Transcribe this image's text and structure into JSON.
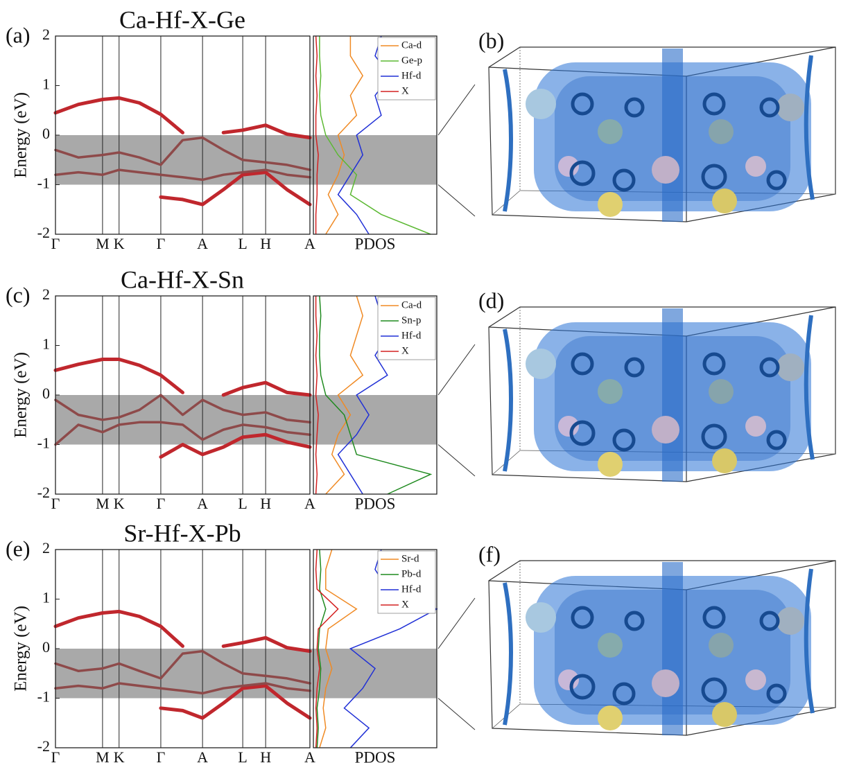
{
  "chart_data": [
    {
      "type": "line",
      "panel_label": "(a)",
      "title": "Ca-Hf-X-Ge",
      "ylabel": "Energy (eV)",
      "xlabel": "PDOS",
      "xlim": [
        0,
        1
      ],
      "xticks": [
        {
          "value": 0,
          "label": "Γ"
        },
        {
          "value": 0.185,
          "label": "M"
        },
        {
          "value": 0.25,
          "label": "K"
        },
        {
          "value": 0.414,
          "label": "Γ"
        },
        {
          "value": 0.578,
          "label": "A"
        },
        {
          "value": 0.736,
          "label": "L"
        },
        {
          "value": 0.826,
          "label": "H"
        },
        {
          "value": 1,
          "label": "A"
        }
      ],
      "ylim": [
        -2,
        2
      ],
      "yticks": [
        -2,
        -1,
        0,
        1,
        2
      ],
      "shade": [
        -1,
        0
      ],
      "x": [
        0,
        0.09,
        0.185,
        0.25,
        0.33,
        0.414,
        0.5,
        0.578,
        0.66,
        0.736,
        0.826,
        0.91,
        1
      ],
      "series": [
        {
          "color": "#c0272d",
          "values": [
            0.45,
            0.62,
            0.72,
            0.75,
            0.65,
            0.42,
            0.05,
            null,
            0.05,
            0.1,
            0.2,
            0.02,
            -0.05
          ]
        },
        {
          "color": "#c0272d",
          "values": [
            null,
            null,
            null,
            null,
            null,
            -1.25,
            -1.3,
            -1.4,
            -1.1,
            -0.8,
            -0.75,
            -1.1,
            -1.4
          ]
        },
        {
          "color": "#8e4a4a",
          "values": [
            -0.3,
            -0.45,
            -0.4,
            -0.35,
            -0.45,
            -0.6,
            -0.1,
            -0.05,
            -0.3,
            -0.5,
            -0.55,
            -0.6,
            -0.7
          ]
        },
        {
          "color": "#8e4a4a",
          "values": [
            -0.8,
            -0.75,
            -0.8,
            -0.7,
            -0.75,
            -0.8,
            -0.85,
            -0.9,
            -0.8,
            -0.75,
            -0.7,
            -0.8,
            -0.85
          ]
        }
      ],
      "pdos_xlim": [
        0,
        1
      ],
      "pdos": {
        "energy": [
          -2,
          -1.6,
          -1.2,
          -0.8,
          -0.4,
          0,
          0.4,
          0.8,
          1.2,
          1.6,
          2
        ],
        "series": [
          {
            "name": "Ca-d",
            "color": "#f08a24",
            "values": [
              0.1,
              0.2,
              0.12,
              0.2,
              0.25,
              0.2,
              0.35,
              0.3,
              0.4,
              0.3,
              0.3
            ]
          },
          {
            "name": "Ge-p",
            "color": "#5bb832",
            "values": [
              0.95,
              0.55,
              0.3,
              0.35,
              0.2,
              0.1,
              0.06,
              0.05,
              0.06,
              0.05,
              0.05
            ]
          },
          {
            "name": "Hf-d",
            "color": "#1f2fd6",
            "values": [
              0.45,
              0.35,
              0.2,
              0.3,
              0.4,
              0.35,
              0.55,
              0.5,
              0.62,
              0.5,
              0.55
            ]
          },
          {
            "name": "X",
            "color": "#d42020",
            "values": [
              0.02,
              0.02,
              0.03,
              0.03,
              0.04,
              0.02,
              0.02,
              0.03,
              0.02,
              0.03,
              0.02
            ]
          }
        ]
      }
    },
    {
      "type": "line",
      "panel_label": "(c)",
      "title": "Ca-Hf-X-Sn",
      "ylabel": "Energy (eV)",
      "xlabel": "PDOS",
      "xlim": [
        0,
        1
      ],
      "xticks": [
        {
          "value": 0,
          "label": "Γ"
        },
        {
          "value": 0.185,
          "label": "M"
        },
        {
          "value": 0.25,
          "label": "K"
        },
        {
          "value": 0.414,
          "label": "Γ"
        },
        {
          "value": 0.578,
          "label": "A"
        },
        {
          "value": 0.736,
          "label": "L"
        },
        {
          "value": 0.826,
          "label": "H"
        },
        {
          "value": 1,
          "label": "A"
        }
      ],
      "ylim": [
        -2,
        2
      ],
      "yticks": [
        -2,
        -1,
        0,
        1,
        2
      ],
      "shade": [
        -1,
        0
      ],
      "x": [
        0,
        0.09,
        0.185,
        0.25,
        0.33,
        0.414,
        0.5,
        0.578,
        0.66,
        0.736,
        0.826,
        0.91,
        1
      ],
      "series": [
        {
          "color": "#c0272d",
          "values": [
            0.5,
            0.62,
            0.72,
            0.72,
            0.6,
            0.4,
            0.05,
            null,
            0.0,
            0.15,
            0.25,
            0.05,
            0.0
          ]
        },
        {
          "color": "#c0272d",
          "values": [
            null,
            null,
            null,
            null,
            null,
            -1.25,
            -1.0,
            -1.2,
            -1.05,
            -0.85,
            -0.8,
            -0.95,
            -1.05
          ]
        },
        {
          "color": "#8e4a4a",
          "values": [
            -0.1,
            -0.4,
            -0.5,
            -0.45,
            -0.3,
            0.0,
            -0.4,
            -0.1,
            -0.3,
            -0.4,
            -0.35,
            -0.5,
            -0.55
          ]
        },
        {
          "color": "#8e4a4a",
          "values": [
            -1.0,
            -0.6,
            -0.75,
            -0.6,
            -0.55,
            -0.55,
            -0.6,
            -0.9,
            -0.7,
            -0.6,
            -0.65,
            -0.75,
            -0.8
          ]
        }
      ],
      "pdos_xlim": [
        0,
        1
      ],
      "pdos": {
        "energy": [
          -2,
          -1.6,
          -1.2,
          -0.8,
          -0.4,
          0,
          0.4,
          0.8,
          1.2,
          1.6,
          2
        ],
        "series": [
          {
            "name": "Ca-d",
            "color": "#f08a24",
            "values": [
              0.1,
              0.25,
              0.15,
              0.2,
              0.3,
              0.2,
              0.4,
              0.3,
              0.35,
              0.4,
              0.35
            ]
          },
          {
            "name": "Sn-p",
            "color": "#1f8a1f",
            "values": [
              0.6,
              0.95,
              0.35,
              0.3,
              0.25,
              0.1,
              0.06,
              0.05,
              0.05,
              0.06,
              0.05
            ]
          },
          {
            "name": "Hf-d",
            "color": "#1f2fd6",
            "values": [
              0.4,
              0.3,
              0.2,
              0.35,
              0.45,
              0.35,
              0.6,
              0.5,
              0.6,
              0.55,
              0.5
            ]
          },
          {
            "name": "X",
            "color": "#d42020",
            "values": [
              0.02,
              0.03,
              0.02,
              0.03,
              0.04,
              0.02,
              0.03,
              0.02,
              0.03,
              0.02,
              0.02
            ]
          }
        ]
      }
    },
    {
      "type": "line",
      "panel_label": "(e)",
      "title": "Sr-Hf-X-Pb",
      "ylabel": "Energy (eV)",
      "xlabel": "PDOS",
      "xlim": [
        0,
        1
      ],
      "xticks": [
        {
          "value": 0,
          "label": "Γ"
        },
        {
          "value": 0.185,
          "label": "M"
        },
        {
          "value": 0.25,
          "label": "K"
        },
        {
          "value": 0.414,
          "label": "Γ"
        },
        {
          "value": 0.578,
          "label": "A"
        },
        {
          "value": 0.736,
          "label": "L"
        },
        {
          "value": 0.826,
          "label": "H"
        },
        {
          "value": 1,
          "label": "A"
        }
      ],
      "ylim": [
        -2,
        2
      ],
      "yticks": [
        -2,
        -1,
        0,
        1,
        2
      ],
      "shade": [
        -1,
        0
      ],
      "x": [
        0,
        0.09,
        0.185,
        0.25,
        0.33,
        0.414,
        0.5,
        0.578,
        0.66,
        0.736,
        0.826,
        0.91,
        1
      ],
      "series": [
        {
          "color": "#c0272d",
          "values": [
            0.45,
            0.62,
            0.72,
            0.75,
            0.65,
            0.45,
            0.05,
            null,
            0.05,
            0.12,
            0.22,
            0.02,
            -0.05
          ]
        },
        {
          "color": "#c0272d",
          "values": [
            null,
            null,
            null,
            null,
            null,
            -1.2,
            -1.25,
            -1.4,
            -1.1,
            -0.8,
            -0.75,
            -1.1,
            -1.4
          ]
        },
        {
          "color": "#8e4a4a",
          "values": [
            -0.3,
            -0.45,
            -0.4,
            -0.3,
            -0.45,
            -0.6,
            -0.1,
            -0.05,
            -0.3,
            -0.5,
            -0.55,
            -0.6,
            -0.7
          ]
        },
        {
          "color": "#8e4a4a",
          "values": [
            -0.8,
            -0.75,
            -0.8,
            -0.7,
            -0.75,
            -0.8,
            -0.85,
            -0.9,
            -0.8,
            -0.75,
            -0.7,
            -0.8,
            -0.85
          ]
        }
      ],
      "pdos_xlim": [
        0,
        1
      ],
      "pdos": {
        "energy": [
          -2,
          -1.6,
          -1.2,
          -0.8,
          -0.4,
          0,
          0.4,
          0.8,
          1.2,
          1.6,
          2
        ],
        "series": [
          {
            "name": "Sr-d",
            "color": "#f08a24",
            "values": [
              0.05,
              0.1,
              0.08,
              0.1,
              0.15,
              0.1,
              0.12,
              0.35,
              0.1,
              0.1,
              0.15
            ]
          },
          {
            "name": "Pb-d",
            "color": "#1f8a1f",
            "values": [
              0.03,
              0.04,
              0.03,
              0.05,
              0.06,
              0.04,
              0.05,
              0.1,
              0.05,
              0.06,
              0.05
            ]
          },
          {
            "name": "Hf-d",
            "color": "#1f2fd6",
            "values": [
              0.3,
              0.45,
              0.25,
              0.4,
              0.5,
              0.3,
              0.7,
              1.0,
              0.6,
              0.5,
              0.55
            ]
          },
          {
            "name": "X",
            "color": "#d42020",
            "values": [
              0.02,
              0.03,
              0.02,
              0.03,
              0.05,
              0.03,
              0.04,
              0.2,
              0.03,
              0.02,
              0.03
            ]
          }
        ]
      }
    }
  ],
  "images": [
    {
      "label": "(b)"
    },
    {
      "label": "(d)"
    },
    {
      "label": "(f)"
    }
  ]
}
